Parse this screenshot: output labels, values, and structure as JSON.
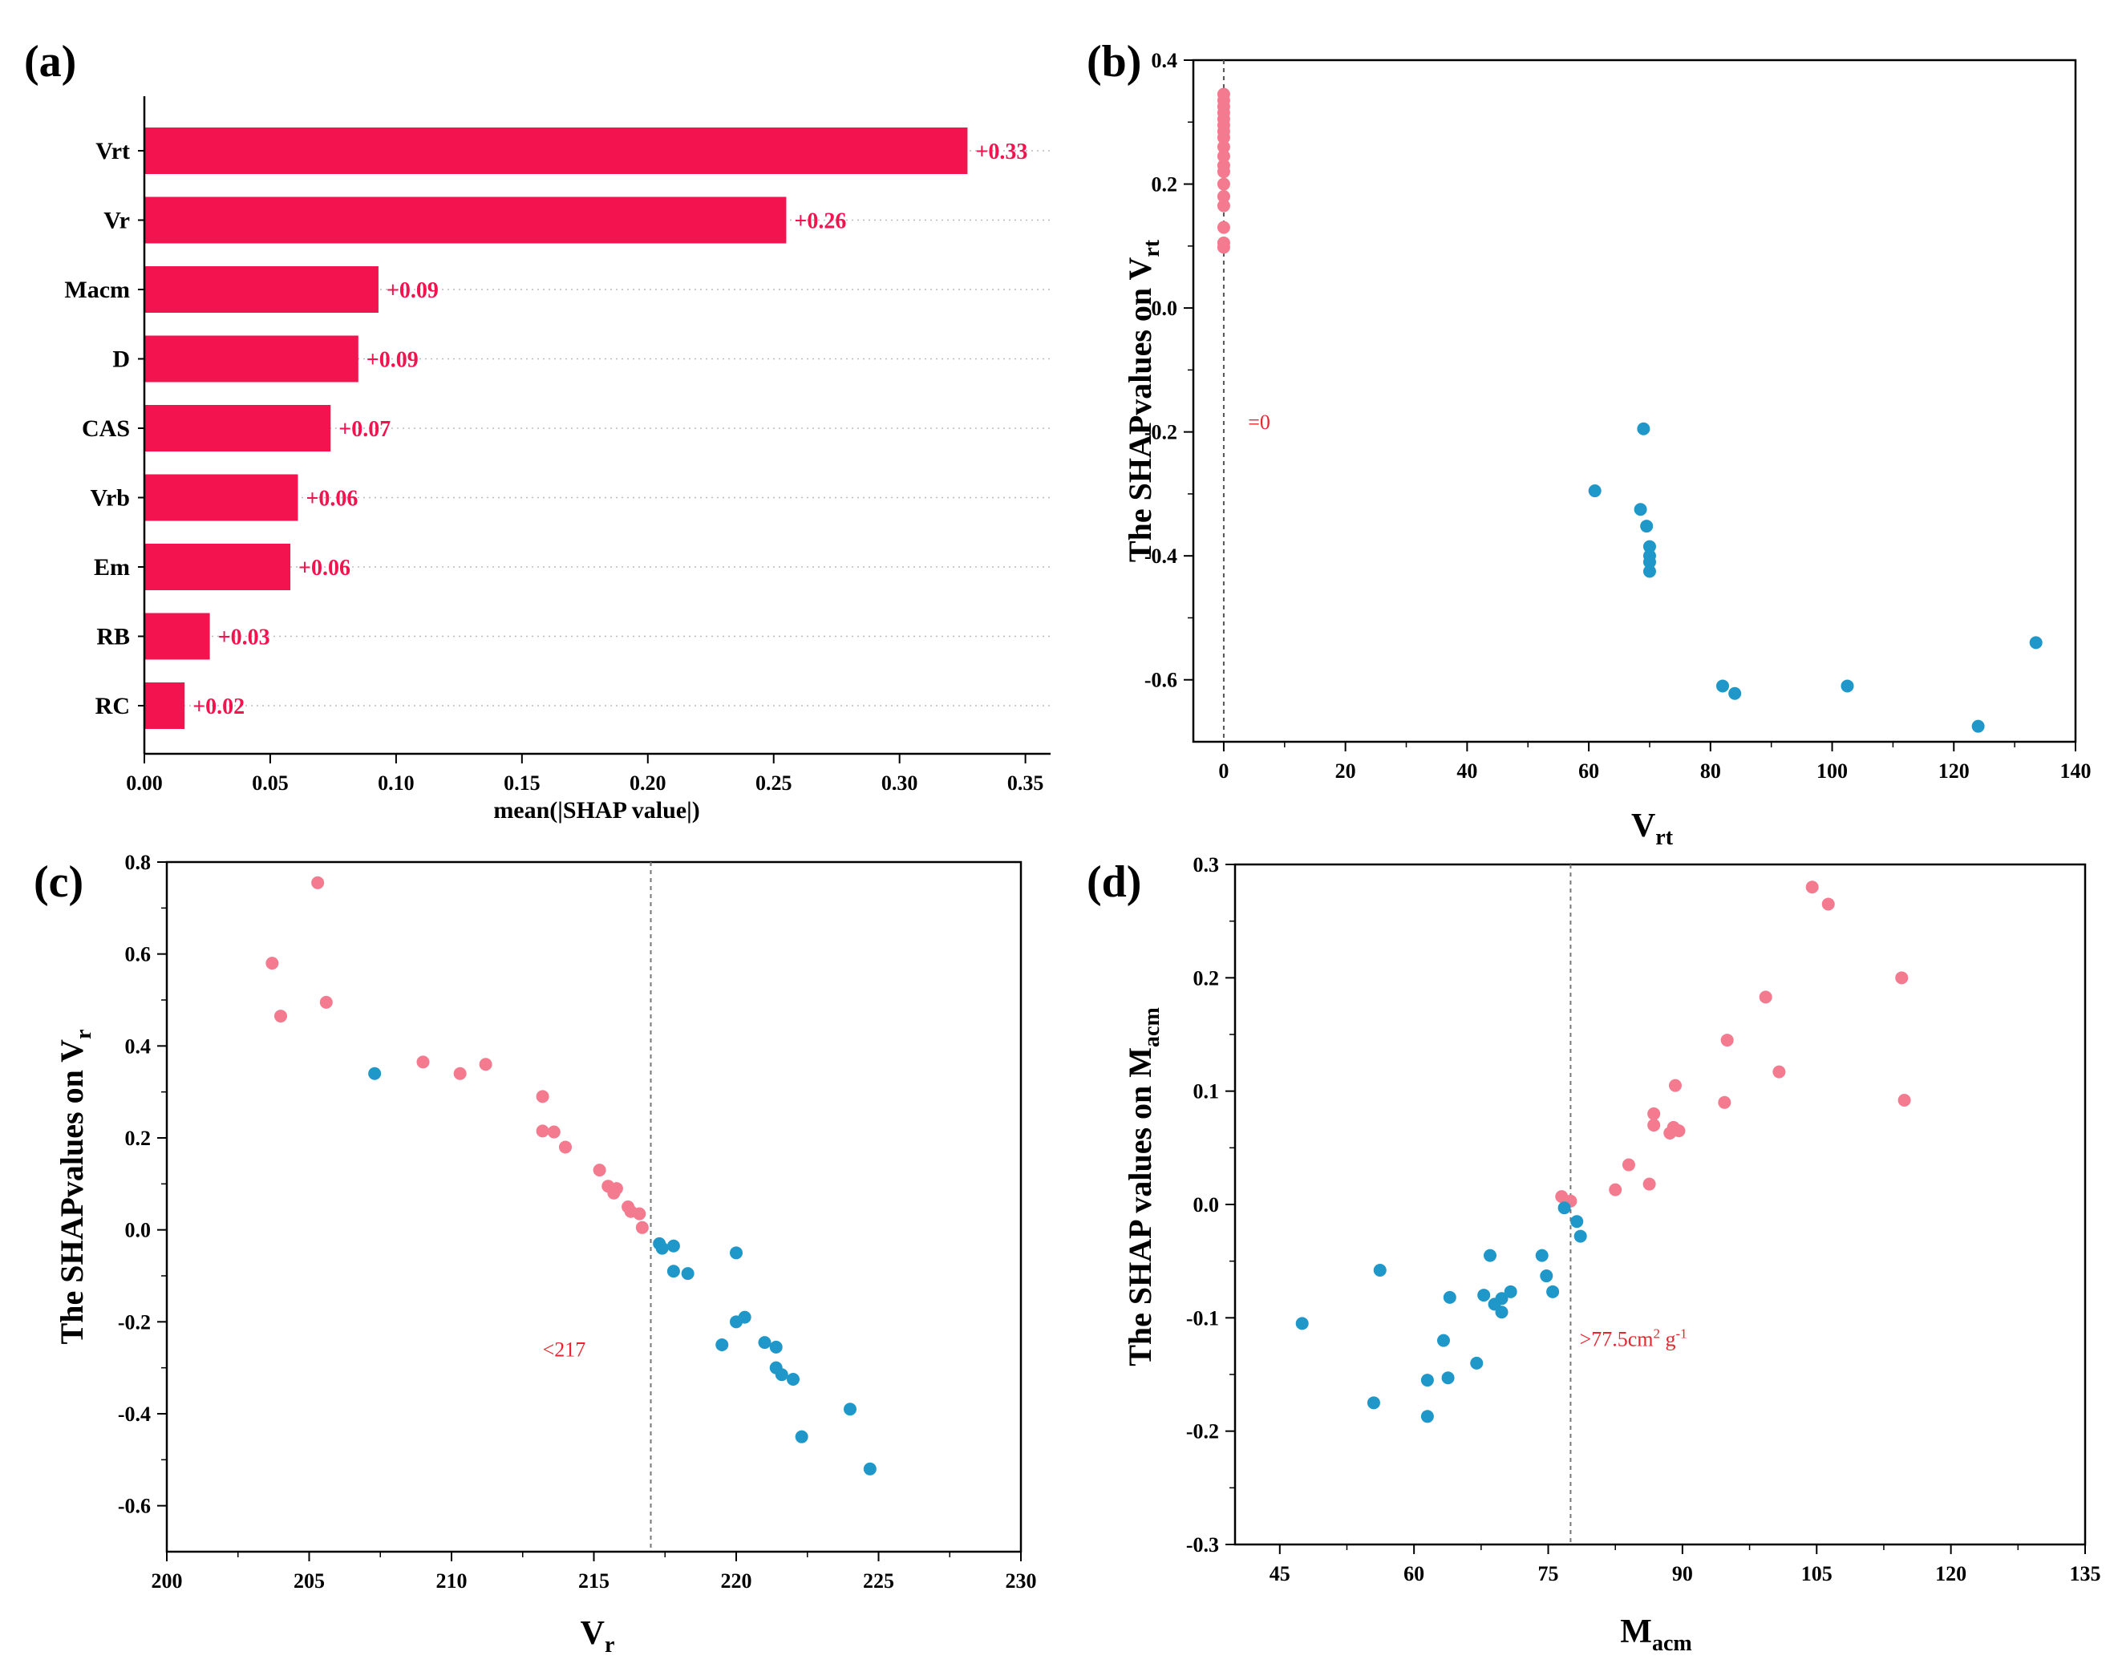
{
  "colors": {
    "pink": "#f37a8f",
    "blue": "#1f98c9",
    "bar": "#f2134f",
    "axis": "#000000",
    "ref": "#888888",
    "annotation": "#e8252e"
  },
  "chart_data": [
    {
      "panel": "(a)",
      "type": "bar",
      "orientation": "horizontal",
      "categories": [
        "Vrt",
        "Vr",
        "Macm",
        "D",
        "CAS",
        "Vrb",
        "Em",
        "RB",
        "RC"
      ],
      "values": [
        0.327,
        0.255,
        0.093,
        0.085,
        0.074,
        0.061,
        0.058,
        0.026,
        0.016
      ],
      "value_labels": [
        "+0.33",
        "+0.26",
        "+0.09",
        "+0.09",
        "+0.07",
        "+0.06",
        "+0.06",
        "+0.03",
        "+0.02"
      ],
      "xlabel": "mean(|SHAP value|)",
      "xlim": [
        0,
        0.36
      ],
      "xticks": [
        "0.00",
        "0.05",
        "0.10",
        "0.15",
        "0.20",
        "0.25",
        "0.30",
        "0.35"
      ]
    },
    {
      "panel": "(b)",
      "type": "scatter",
      "xlabel_main": "V",
      "xlabel_sub": "rt",
      "ylabel_main": "The SHAPvalues on V",
      "ylabel_sub": "rt",
      "xlim": [
        -5,
        140
      ],
      "ylim": [
        -0.7,
        0.4
      ],
      "xticks": [
        "0",
        "20",
        "40",
        "60",
        "80",
        "100",
        "120",
        "140"
      ],
      "yticks": [
        "0.4",
        "0.2",
        "0.0",
        "-0.2",
        "-0.4",
        "-0.6"
      ],
      "threshold_x": 0,
      "annotation": "=0",
      "annotation_at": [
        4,
        -0.195
      ],
      "series": [
        {
          "name": "above",
          "color": "pink",
          "points": [
            [
              0,
              0.345
            ],
            [
              0,
              0.335
            ],
            [
              0,
              0.325
            ],
            [
              0,
              0.315
            ],
            [
              0,
              0.305
            ],
            [
              0,
              0.295
            ],
            [
              0,
              0.285
            ],
            [
              0,
              0.275
            ],
            [
              0,
              0.26
            ],
            [
              0,
              0.245
            ],
            [
              0,
              0.23
            ],
            [
              0,
              0.22
            ],
            [
              0,
              0.2
            ],
            [
              0,
              0.18
            ],
            [
              0,
              0.165
            ],
            [
              0,
              0.13
            ],
            [
              0,
              0.105
            ],
            [
              0,
              0.098
            ]
          ]
        },
        {
          "name": "below",
          "color": "blue",
          "points": [
            [
              61,
              -0.295
            ],
            [
              68.5,
              -0.325
            ],
            [
              69,
              -0.195
            ],
            [
              69.5,
              -0.352
            ],
            [
              70,
              -0.385
            ],
            [
              70,
              -0.4
            ],
            [
              70,
              -0.41
            ],
            [
              70,
              -0.425
            ],
            [
              82,
              -0.61
            ],
            [
              84,
              -0.622
            ],
            [
              102.5,
              -0.61
            ],
            [
              124,
              -0.675
            ],
            [
              133.5,
              -0.54
            ]
          ]
        }
      ]
    },
    {
      "panel": "(c)",
      "type": "scatter",
      "xlabel_main": "V",
      "xlabel_sub": "r",
      "ylabel_main": "The SHAPvalues on V",
      "ylabel_sub": "r",
      "xlim": [
        200,
        230
      ],
      "ylim": [
        -0.7,
        0.8
      ],
      "xticks": [
        "200",
        "205",
        "210",
        "215",
        "220",
        "225",
        "230"
      ],
      "yticks": [
        "0.8",
        "0.6",
        "0.4",
        "0.2",
        "0.0",
        "-0.2",
        "-0.4",
        "-0.6"
      ],
      "threshold_x": 217,
      "annotation": "<217",
      "annotation_at": [
        213.2,
        -0.275
      ],
      "series": [
        {
          "name": "below",
          "color": "pink",
          "points": [
            [
              203.7,
              0.58
            ],
            [
              204,
              0.465
            ],
            [
              205.3,
              0.755
            ],
            [
              205.6,
              0.495
            ],
            [
              209,
              0.365
            ],
            [
              210.3,
              0.34
            ],
            [
              211.2,
              0.36
            ],
            [
              213.2,
              0.29
            ],
            [
              213.2,
              0.215
            ],
            [
              213.6,
              0.213
            ],
            [
              214,
              0.18
            ],
            [
              215.2,
              0.13
            ],
            [
              215.5,
              0.095
            ],
            [
              215.7,
              0.08
            ],
            [
              215.8,
              0.09
            ],
            [
              216.2,
              0.05
            ],
            [
              216.3,
              0.04
            ],
            [
              216.6,
              0.035
            ],
            [
              216.7,
              0.005
            ]
          ]
        },
        {
          "name": "above",
          "color": "blue",
          "points": [
            [
              207.3,
              0.34
            ],
            [
              217.3,
              -0.03
            ],
            [
              217.4,
              -0.04
            ],
            [
              217.8,
              -0.035
            ],
            [
              217.8,
              -0.09
            ],
            [
              218.3,
              -0.095
            ],
            [
              219.5,
              -0.25
            ],
            [
              220,
              -0.05
            ],
            [
              220,
              -0.2
            ],
            [
              220.3,
              -0.19
            ],
            [
              221,
              -0.245
            ],
            [
              221.4,
              -0.255
            ],
            [
              221.4,
              -0.3
            ],
            [
              221.6,
              -0.315
            ],
            [
              222,
              -0.325
            ],
            [
              222.3,
              -0.45
            ],
            [
              224,
              -0.39
            ],
            [
              224.7,
              -0.52
            ]
          ]
        }
      ]
    },
    {
      "panel": "(d)",
      "type": "scatter",
      "xlabel_main": "M",
      "xlabel_sub": "acm",
      "ylabel_main": "The SHAP values on M",
      "ylabel_sub": "acm",
      "xlim": [
        40,
        135
      ],
      "ylim": [
        -0.3,
        0.3
      ],
      "xticks": [
        "45",
        "60",
        "75",
        "90",
        "105",
        "120",
        "135"
      ],
      "yticks": [
        "0.3",
        "0.2",
        "0.1",
        "0.0",
        "-0.1",
        "-0.2",
        "-0.3"
      ],
      "threshold_x": 77.5,
      "annotation_main": ">77.5cm",
      "annotation_sup1": "2",
      "annotation_mid": " g",
      "annotation_sup2": "-1",
      "annotation_at": [
        78.5,
        -0.125
      ],
      "series": [
        {
          "name": "above",
          "color": "pink",
          "points": [
            [
              76.5,
              0.007
            ],
            [
              77.5,
              0.003
            ],
            [
              82.5,
              0.013
            ],
            [
              84,
              0.035
            ],
            [
              86.3,
              0.018
            ],
            [
              86.8,
              0.08
            ],
            [
              86.8,
              0.07
            ],
            [
              88.6,
              0.063
            ],
            [
              89,
              0.068
            ],
            [
              89.2,
              0.105
            ],
            [
              89.6,
              0.065
            ],
            [
              94.7,
              0.09
            ],
            [
              95,
              0.145
            ],
            [
              99.3,
              0.183
            ],
            [
              100.8,
              0.117
            ],
            [
              104.5,
              0.28
            ],
            [
              106.3,
              0.265
            ],
            [
              114.5,
              0.2
            ],
            [
              114.8,
              0.092
            ]
          ]
        },
        {
          "name": "below",
          "color": "blue",
          "points": [
            [
              47.5,
              -0.105
            ],
            [
              55.5,
              -0.175
            ],
            [
              56.2,
              -0.058
            ],
            [
              61.5,
              -0.155
            ],
            [
              61.5,
              -0.187
            ],
            [
              63.3,
              -0.12
            ],
            [
              63.8,
              -0.153
            ],
            [
              64,
              -0.082
            ],
            [
              67,
              -0.14
            ],
            [
              67.8,
              -0.08
            ],
            [
              68.5,
              -0.045
            ],
            [
              69,
              -0.088
            ],
            [
              69.8,
              -0.083
            ],
            [
              69.8,
              -0.095
            ],
            [
              70.8,
              -0.077
            ],
            [
              74.3,
              -0.045
            ],
            [
              74.8,
              -0.063
            ],
            [
              75.5,
              -0.077
            ],
            [
              76.8,
              -0.003
            ],
            [
              78.2,
              -0.015
            ],
            [
              78.6,
              -0.028
            ]
          ]
        }
      ]
    }
  ]
}
